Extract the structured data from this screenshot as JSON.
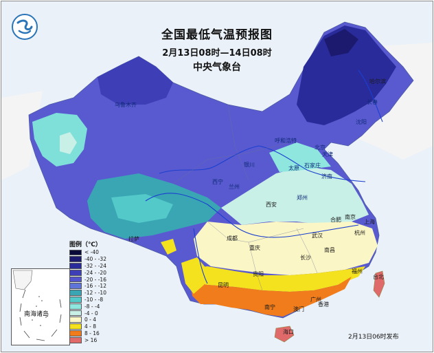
{
  "header": {
    "title": "全国最低气温预报图",
    "period": "2月13日08时—14日08时",
    "issuer": "中央气象台"
  },
  "legend": {
    "title": "图例（℃）",
    "items": [
      {
        "label": "< -40",
        "color": "#0a0a3a"
      },
      {
        "label": "-40 - -32",
        "color": "#1b1a6e"
      },
      {
        "label": "-32 - -24",
        "color": "#2a2b9a"
      },
      {
        "label": "-24 - -20",
        "color": "#3e3fb6"
      },
      {
        "label": "-20 - -16",
        "color": "#5454cf"
      },
      {
        "label": "-16 - -12",
        "color": "#5e74d9"
      },
      {
        "label": "-12 - -10",
        "color": "#3aa6b4"
      },
      {
        "label": "-10 - -8",
        "color": "#54c9c9"
      },
      {
        "label": "-8 - -4",
        "color": "#8fe6df"
      },
      {
        "label": "-4 - 0",
        "color": "#c8f0e6"
      },
      {
        "label": "0 - 4",
        "color": "#fbf6c6"
      },
      {
        "label": "4 - 8",
        "color": "#f5e21e"
      },
      {
        "label": "8 - 16",
        "color": "#f07c1c"
      },
      {
        "label": "> 16",
        "color": "#e06a6a"
      }
    ]
  },
  "inset": {
    "label": "南海诸岛"
  },
  "footer": {
    "issued": "2月13日06时发布"
  },
  "cities": {
    "urumqi": "乌鲁木齐",
    "harbin": "哈尔滨",
    "changchun": "长春",
    "shenyang": "沈阳",
    "hohhot": "呼和浩特",
    "beijing": "北京",
    "tianjin": "天津",
    "yinchuan": "银川",
    "shijiazhuang": "石家庄",
    "taiyuan": "太原",
    "jinan": "济南",
    "xining": "西宁",
    "lanzhou": "兰州",
    "xian": "西安",
    "zhengzhou": "郑州",
    "hefei": "合肥",
    "nanjing": "南京",
    "shanghai": "上海",
    "wuhan": "武汉",
    "hangzhou": "杭州",
    "lhasa": "拉萨",
    "chengdu": "成都",
    "chongqing": "重庆",
    "changsha": "长沙",
    "nanchang": "南昌",
    "guiyang": "贵阳",
    "fuzhou": "福州",
    "taibei": "台北",
    "kunming": "昆明",
    "nanning": "南宁",
    "guangzhou": "广州",
    "hongkong": "香港",
    "macau": "澳门",
    "haikou": "海口"
  }
}
